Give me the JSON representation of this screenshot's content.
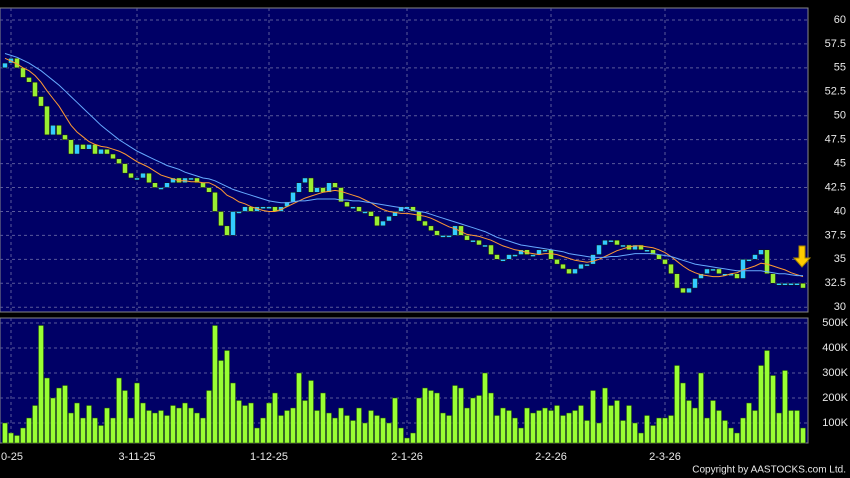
{
  "chart_data": {
    "type": "candlestick",
    "credit": "Copyright by AASTOCKS.com Ltd.",
    "categories": [
      null,
      "0-25",
      null,
      null,
      null,
      null,
      null,
      null,
      null,
      null,
      null,
      null,
      null,
      null,
      null,
      null,
      null,
      null,
      null,
      null,
      null,
      null,
      "3-11-25",
      null,
      null,
      null,
      null,
      null,
      null,
      null,
      null,
      null,
      null,
      null,
      null,
      null,
      null,
      null,
      null,
      null,
      null,
      null,
      null,
      null,
      "1-12-25",
      null,
      null,
      null,
      null,
      null,
      null,
      null,
      null,
      null,
      null,
      null,
      null,
      null,
      null,
      null,
      null,
      null,
      null,
      null,
      null,
      null,
      null,
      "2-1-26",
      null,
      null,
      null,
      null,
      null,
      null,
      null,
      null,
      null,
      null,
      null,
      null,
      null,
      null,
      null,
      null,
      null,
      null,
      null,
      null,
      null,
      null,
      null,
      "2-2-26",
      null,
      null,
      null,
      null,
      null,
      null,
      null,
      null,
      null,
      null,
      null,
      null,
      null,
      null,
      null,
      null,
      null,
      null,
      "2-3-26",
      null,
      null,
      null,
      null,
      null,
      null,
      null,
      null,
      null,
      null,
      null,
      null,
      null,
      null,
      null,
      null,
      null,
      null,
      null,
      null,
      null,
      null,
      null
    ],
    "open": [
      55,
      55.5,
      56,
      55,
      54,
      53.5,
      52,
      51,
      48,
      49,
      48,
      47.5,
      46,
      47,
      46.5,
      47,
      46,
      46.5,
      46,
      45.5,
      45,
      44,
      43.5,
      43.5,
      44,
      43,
      42.5,
      42.5,
      43,
      43.5,
      43,
      43.5,
      43.5,
      43,
      42.5,
      42,
      40,
      38.5,
      37.5,
      40,
      40,
      40.5,
      40,
      40.5,
      40.5,
      40.5,
      40,
      40.5,
      41,
      42,
      43,
      43.5,
      42,
      42.5,
      42,
      43,
      42.5,
      41,
      40.5,
      40.5,
      40,
      40,
      39.5,
      38.5,
      39,
      39.5,
      40,
      40.5,
      40.5,
      40,
      39,
      38.5,
      38,
      37.5,
      37.5,
      37.5,
      38.5,
      37.5,
      37,
      37,
      36.5,
      36.5,
      35.5,
      35,
      35,
      35.5,
      35.5,
      36,
      35.5,
      35.5,
      36,
      36,
      35,
      34.5,
      34,
      33.5,
      34,
      34.5,
      34.5,
      35.5,
      36.5,
      37,
      37,
      36.5,
      36.5,
      36,
      36.5,
      36,
      36,
      35.5,
      35,
      34.5,
      33.5,
      32,
      31.5,
      32,
      33,
      33.5,
      34,
      34,
      33.5,
      33.5,
      33.5,
      33,
      35,
      35,
      35.5,
      36,
      33.5,
      32.5,
      32.5,
      32.5,
      32.5,
      32.5
    ],
    "close": [
      55.5,
      56,
      55,
      54,
      53.5,
      52,
      51,
      48,
      49,
      48,
      47.5,
      46,
      47,
      46.5,
      47,
      46,
      46.5,
      46,
      45.5,
      45,
      44,
      43.5,
      43.5,
      44,
      43,
      42.5,
      42.5,
      43,
      43.5,
      43,
      43.5,
      43.5,
      43,
      42.5,
      42,
      40,
      38.5,
      37.5,
      40,
      40,
      40.5,
      40,
      40.5,
      40.5,
      40.5,
      40,
      40.5,
      41,
      42,
      43,
      43.5,
      42,
      42.5,
      42,
      43,
      42.5,
      41,
      40.5,
      40.5,
      40,
      40,
      39.5,
      38.5,
      39,
      39.5,
      40,
      40.5,
      40.5,
      40,
      39,
      38.5,
      38,
      37.5,
      37.5,
      37.5,
      38.5,
      37.5,
      37,
      37,
      36.5,
      36.5,
      35.5,
      35,
      35,
      35.5,
      35.5,
      36,
      35.5,
      35.5,
      36,
      36,
      35,
      34.5,
      34,
      33.5,
      34,
      34.5,
      34.5,
      35.5,
      36.5,
      37,
      37,
      36.5,
      36.5,
      36,
      36.5,
      36,
      36,
      35.5,
      35,
      34.5,
      33.5,
      32,
      31.5,
      32,
      33,
      33.5,
      34,
      34,
      33.5,
      33.5,
      33.5,
      33,
      35,
      35,
      35.5,
      36,
      33.5,
      32.5,
      32.5,
      32.5,
      32.5,
      32.5,
      32
    ],
    "up_color": "#33ccff",
    "down_color": "#99ee33",
    "ma_lines": [
      {
        "color": "#ff9933",
        "values": [
          56,
          55.7,
          55.4,
          55,
          54.7,
          54.2,
          53.5,
          52.6,
          51.8,
          51,
          50,
          49,
          48.3,
          47.8,
          47.3,
          47,
          46.8,
          46.7,
          46.5,
          46.3,
          46,
          45.6,
          45.2,
          44.9,
          44.6,
          44.2,
          43.8,
          43.6,
          43.4,
          43.2,
          43.2,
          43.1,
          43.1,
          43,
          43,
          42.7,
          42.3,
          41.7,
          41.4,
          41,
          40.8,
          40.5,
          40.3,
          40.1,
          40,
          40,
          40.2,
          40.5,
          40.8,
          41.1,
          41.4,
          41.6,
          41.8,
          42,
          42.1,
          42.2,
          42.1,
          41.9,
          41.7,
          41.5,
          41.2,
          40.9,
          40.5,
          40.2,
          40,
          39.9,
          39.8,
          39.8,
          39.7,
          39.6,
          39.5,
          39.3,
          39,
          38.7,
          38.4,
          38.2,
          37.9,
          37.6,
          37.5,
          37.4,
          37.2,
          37,
          36.7,
          36.4,
          36.2,
          36,
          35.9,
          35.7,
          35.6,
          35.5,
          35.6,
          35.6,
          35.5,
          35.3,
          35.1,
          34.9,
          34.8,
          34.7,
          34.8,
          35,
          35.3,
          35.6,
          35.9,
          36.1,
          36.3,
          36.4,
          36.4,
          36.3,
          36.2,
          36,
          35.7,
          35.3,
          34.8,
          34.3,
          33.9,
          33.6,
          33.4,
          33.3,
          33.2,
          33.2,
          33.3,
          33.5,
          33.6,
          33.9,
          34.1,
          34.3,
          34.6,
          34.5,
          34.3,
          34.1,
          33.9,
          33.6,
          33.4,
          33.2
        ]
      },
      {
        "color": "#66aaff",
        "values": [
          56.5,
          56.3,
          56.1,
          55.8,
          55.5,
          55.1,
          54.7,
          54.2,
          53.7,
          53.2,
          52.6,
          52,
          51.4,
          50.8,
          50.2,
          49.6,
          49,
          48.5,
          48,
          47.5,
          47.1,
          46.7,
          46.3,
          46,
          45.7,
          45.4,
          45.1,
          44.8,
          44.6,
          44.4,
          44.1,
          43.9,
          43.7,
          43.5,
          43.4,
          43.2,
          42.9,
          42.6,
          42.3,
          42.1,
          41.9,
          41.7,
          41.5,
          41.3,
          41.1,
          41,
          40.9,
          40.9,
          41,
          41.1,
          41.1,
          41.2,
          41.3,
          41.3,
          41.3,
          41.3,
          41.2,
          41.2,
          41.1,
          41.1,
          41,
          40.9,
          40.8,
          40.7,
          40.6,
          40.5,
          40.4,
          40.3,
          40.1,
          40,
          39.9,
          39.7,
          39.5,
          39.3,
          39.1,
          38.9,
          38.7,
          38.5,
          38.3,
          38.1,
          37.9,
          37.6,
          37.3,
          37.1,
          36.9,
          36.7,
          36.5,
          36.4,
          36.3,
          36.2,
          36.1,
          36,
          35.9,
          35.8,
          35.6,
          35.5,
          35.4,
          35.3,
          35.2,
          35.2,
          35.2,
          35.3,
          35.3,
          35.4,
          35.5,
          35.6,
          35.6,
          35.6,
          35.6,
          35.5,
          35.4,
          35.3,
          35.1,
          34.9,
          34.7,
          34.5,
          34.4,
          34.3,
          34.2,
          34.1,
          34,
          33.9,
          33.8,
          33.8,
          33.8,
          33.8,
          33.8,
          33.7,
          33.6,
          33.5,
          33.5,
          33.4,
          33.3,
          33.3
        ]
      }
    ],
    "ylim": [
      29.5,
      61.25
    ],
    "yticks": [
      30,
      32.5,
      35,
      37.5,
      40,
      42.5,
      45,
      47.5,
      50,
      52.5,
      55,
      57.5,
      60
    ],
    "volume": [
      100000,
      60000,
      50000,
      80000,
      120000,
      170000,
      490000,
      280000,
      200000,
      240000,
      250000,
      140000,
      180000,
      120000,
      170000,
      120000,
      90000,
      160000,
      120000,
      280000,
      230000,
      120000,
      260000,
      180000,
      150000,
      140000,
      150000,
      130000,
      170000,
      160000,
      180000,
      160000,
      140000,
      120000,
      230000,
      490000,
      350000,
      390000,
      260000,
      190000,
      170000,
      180000,
      80000,
      120000,
      180000,
      220000,
      130000,
      150000,
      160000,
      300000,
      190000,
      270000,
      150000,
      220000,
      140000,
      120000,
      160000,
      130000,
      110000,
      160000,
      100000,
      150000,
      130000,
      120000,
      100000,
      200000,
      80000,
      40000,
      60000,
      200000,
      240000,
      230000,
      220000,
      140000,
      130000,
      250000,
      240000,
      160000,
      200000,
      210000,
      300000,
      220000,
      130000,
      160000,
      150000,
      120000,
      80000,
      160000,
      140000,
      150000,
      160000,
      150000,
      170000,
      130000,
      140000,
      150000,
      170000,
      110000,
      230000,
      100000,
      240000,
      170000,
      190000,
      110000,
      170000,
      100000,
      60000,
      130000,
      90000,
      120000,
      120000,
      130000,
      330000,
      260000,
      190000,
      160000,
      300000,
      120000,
      190000,
      150000,
      110000,
      80000,
      60000,
      120000,
      180000,
      150000,
      330000,
      390000,
      290000,
      140000,
      310000,
      150000,
      150000,
      80000
    ],
    "volume_color": "#99ff33",
    "volume_ylim": [
      20000,
      520000
    ],
    "volume_yticks": [
      {
        "value": 100000,
        "label": "100K"
      },
      {
        "value": 200000,
        "label": "200K"
      },
      {
        "value": 300000,
        "label": "300K"
      },
      {
        "value": 400000,
        "label": "400K"
      },
      {
        "value": 500000,
        "label": "500K"
      }
    ],
    "grid": true
  }
}
